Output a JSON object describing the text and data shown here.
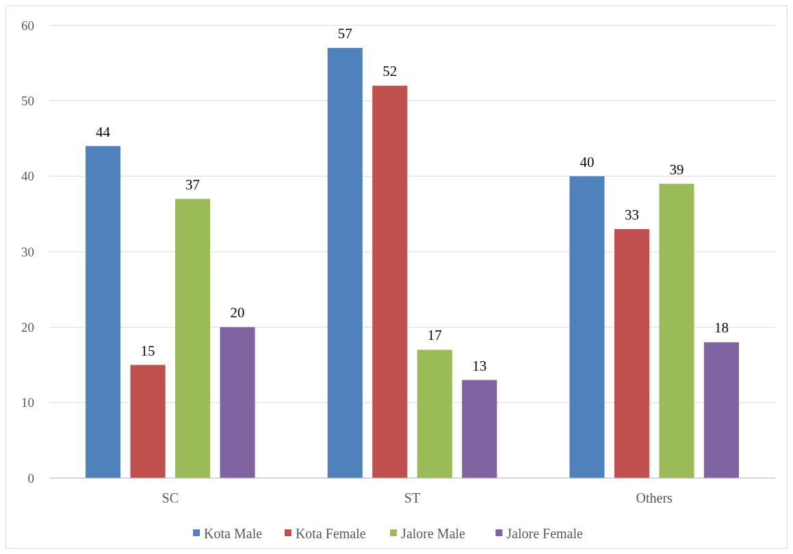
{
  "chart_data": {
    "type": "bar",
    "categories": [
      "SC",
      "ST",
      "Others"
    ],
    "series": [
      {
        "name": "Kota Male",
        "color": "#4f81bd",
        "values": [
          44,
          57,
          40
        ]
      },
      {
        "name": "Kota Female",
        "color": "#c0504d",
        "values": [
          15,
          52,
          33
        ]
      },
      {
        "name": "Jalore Male",
        "color": "#9bbb59",
        "values": [
          37,
          17,
          39
        ]
      },
      {
        "name": "Jalore Female",
        "color": "#8064a2",
        "values": [
          20,
          13,
          18
        ]
      }
    ],
    "ylim": [
      0,
      60
    ],
    "yticks": [
      0,
      10,
      20,
      30,
      40,
      50,
      60
    ],
    "grid": "y",
    "legend": "bottom",
    "data_labels": true
  }
}
